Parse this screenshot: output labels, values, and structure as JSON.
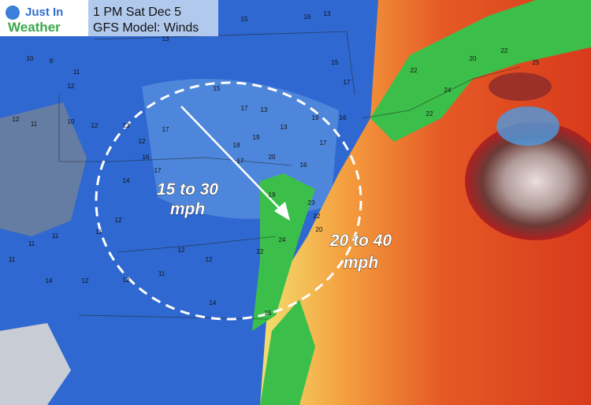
{
  "logo": {
    "line1": "Just In",
    "line2": "Weather"
  },
  "header": {
    "time": "1 PM Sat Dec 5",
    "model": "GFS Model: Winds"
  },
  "annotations": {
    "inland": {
      "line1": "15 to 30",
      "line2": "mph"
    },
    "coast": {
      "line1": "20 to 40",
      "line2": "mph"
    }
  },
  "map": {
    "wind_labels": [
      9,
      10,
      12,
      11,
      12,
      11,
      10,
      12,
      13,
      12,
      17,
      16,
      17,
      14,
      12,
      11,
      11,
      11,
      11,
      12,
      14,
      12,
      11,
      12,
      12,
      14,
      15,
      18,
      19,
      17,
      20,
      19,
      16,
      17,
      19,
      16,
      13,
      13,
      17,
      15,
      13,
      13,
      15,
      16,
      13,
      15,
      17,
      22,
      22,
      24,
      20,
      22,
      25,
      23,
      22,
      20,
      24,
      22
    ]
  }
}
